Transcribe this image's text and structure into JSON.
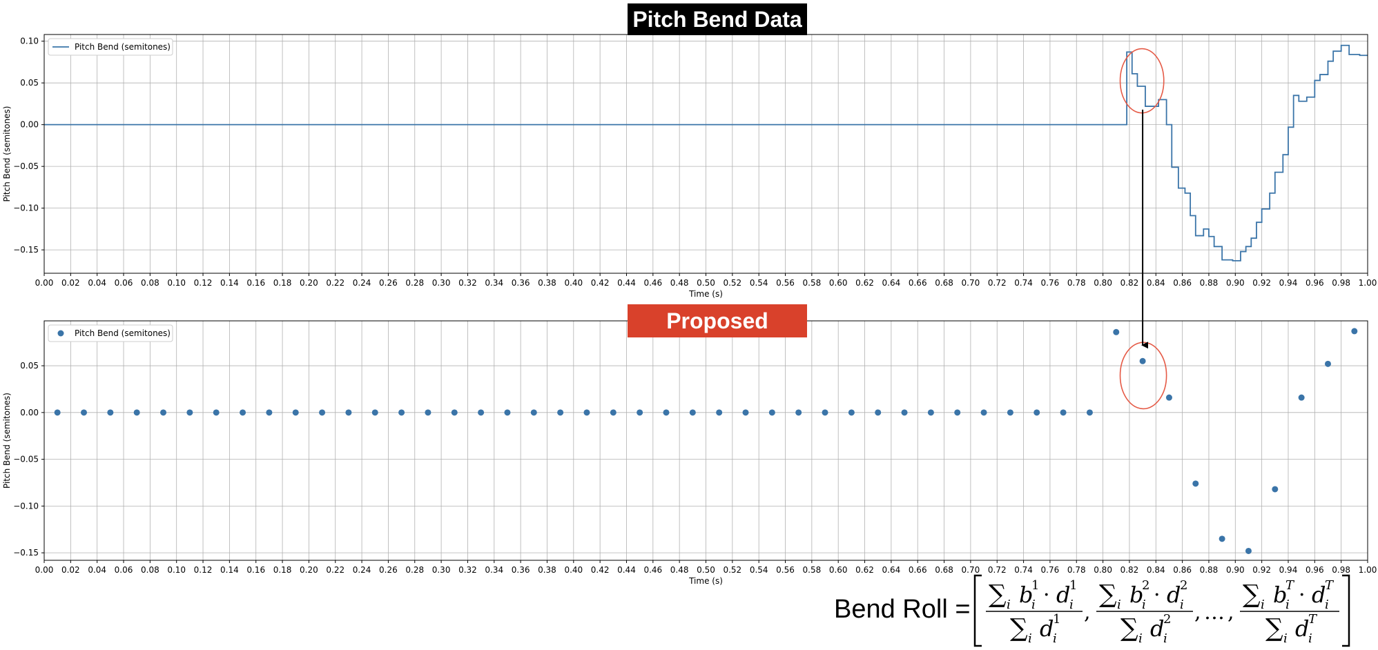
{
  "titles": {
    "top": "Pitch Bend Data",
    "bottom": "Proposed"
  },
  "colors": {
    "series": "#3a74a8",
    "top_title_bg": "#000000",
    "bottom_title_bg": "#d9412b",
    "annotation": "#e55a46"
  },
  "formula": {
    "lhs": "Bend Roll =",
    "ellipsis": "…",
    "sum": "∑",
    "index": "i",
    "b": "b",
    "d": "d",
    "dot": "·",
    "sup1": "1",
    "sup2": "2",
    "supT": "T",
    "comma": ","
  },
  "chart_data": [
    {
      "type": "line",
      "step": true,
      "title": "Pitch Bend Data",
      "xlabel": "Time (s)",
      "ylabel": "Pitch Bend (semitones)",
      "xlim": [
        0,
        1.0
      ],
      "ylim": [
        -0.178,
        0.108
      ],
      "grid": true,
      "legend_position": "top-left",
      "x_ticks": [
        "0.00",
        "0.02",
        "0.04",
        "0.06",
        "0.08",
        "0.10",
        "0.12",
        "0.14",
        "0.16",
        "0.18",
        "0.20",
        "0.22",
        "0.24",
        "0.26",
        "0.28",
        "0.30",
        "0.32",
        "0.34",
        "0.36",
        "0.38",
        "0.40",
        "0.42",
        "0.44",
        "0.46",
        "0.48",
        "0.50",
        "0.52",
        "0.54",
        "0.56",
        "0.58",
        "0.60",
        "0.62",
        "0.64",
        "0.66",
        "0.68",
        "0.70",
        "0.72",
        "0.74",
        "0.76",
        "0.78",
        "0.80",
        "0.82",
        "0.84",
        "0.86",
        "0.88",
        "0.90",
        "0.92",
        "0.94",
        "0.96",
        "0.98",
        "1.00"
      ],
      "y_ticks": [
        {
          "value": 0.1,
          "label": "0.10"
        },
        {
          "value": 0.05,
          "label": "0.05"
        },
        {
          "value": 0.0,
          "label": "0.00"
        },
        {
          "value": -0.05,
          "label": "−0.05"
        },
        {
          "value": -0.1,
          "label": "−0.10"
        },
        {
          "value": -0.15,
          "label": "−0.15"
        }
      ],
      "series": [
        {
          "name": "Pitch Bend (semitones)",
          "points": [
            [
              0.0,
              0.0
            ],
            [
              0.818,
              0.0
            ],
            [
              0.818,
              0.087
            ],
            [
              0.822,
              0.087
            ],
            [
              0.822,
              0.061
            ],
            [
              0.826,
              0.061
            ],
            [
              0.826,
              0.046
            ],
            [
              0.832,
              0.046
            ],
            [
              0.832,
              0.022
            ],
            [
              0.842,
              0.022
            ],
            [
              0.842,
              0.03
            ],
            [
              0.848,
              0.03
            ],
            [
              0.848,
              0.0
            ],
            [
              0.852,
              0.0
            ],
            [
              0.852,
              -0.051
            ],
            [
              0.857,
              -0.051
            ],
            [
              0.857,
              -0.076
            ],
            [
              0.862,
              -0.076
            ],
            [
              0.862,
              -0.082
            ],
            [
              0.866,
              -0.082
            ],
            [
              0.866,
              -0.109
            ],
            [
              0.87,
              -0.109
            ],
            [
              0.87,
              -0.133
            ],
            [
              0.876,
              -0.133
            ],
            [
              0.876,
              -0.125
            ],
            [
              0.88,
              -0.125
            ],
            [
              0.88,
              -0.134
            ],
            [
              0.884,
              -0.134
            ],
            [
              0.884,
              -0.146
            ],
            [
              0.89,
              -0.146
            ],
            [
              0.89,
              -0.162
            ],
            [
              0.898,
              -0.162
            ],
            [
              0.898,
              -0.163
            ],
            [
              0.904,
              -0.163
            ],
            [
              0.904,
              -0.152
            ],
            [
              0.908,
              -0.152
            ],
            [
              0.908,
              -0.146
            ],
            [
              0.912,
              -0.146
            ],
            [
              0.912,
              -0.136
            ],
            [
              0.916,
              -0.136
            ],
            [
              0.916,
              -0.117
            ],
            [
              0.92,
              -0.117
            ],
            [
              0.92,
              -0.101
            ],
            [
              0.926,
              -0.101
            ],
            [
              0.926,
              -0.082
            ],
            [
              0.93,
              -0.082
            ],
            [
              0.93,
              -0.057
            ],
            [
              0.936,
              -0.057
            ],
            [
              0.936,
              -0.036
            ],
            [
              0.94,
              -0.036
            ],
            [
              0.94,
              -0.003
            ],
            [
              0.944,
              -0.003
            ],
            [
              0.944,
              0.035
            ],
            [
              0.948,
              0.035
            ],
            [
              0.948,
              0.028
            ],
            [
              0.954,
              0.028
            ],
            [
              0.954,
              0.033
            ],
            [
              0.96,
              0.033
            ],
            [
              0.96,
              0.053
            ],
            [
              0.964,
              0.053
            ],
            [
              0.964,
              0.06
            ],
            [
              0.97,
              0.06
            ],
            [
              0.97,
              0.076
            ],
            [
              0.974,
              0.076
            ],
            [
              0.974,
              0.088
            ],
            [
              0.98,
              0.088
            ],
            [
              0.98,
              0.095
            ],
            [
              0.986,
              0.095
            ],
            [
              0.986,
              0.084
            ],
            [
              0.994,
              0.084
            ],
            [
              0.994,
              0.083
            ],
            [
              1.0,
              0.083
            ]
          ]
        }
      ],
      "annotations": [
        {
          "type": "ellipse",
          "cx": 0.8295,
          "cy": 0.0525,
          "rx": 0.0165,
          "ry": 0.0385
        }
      ]
    },
    {
      "type": "scatter",
      "title": "Proposed",
      "xlabel": "Time (s)",
      "ylabel": "Pitch Bend (semitones)",
      "xlim": [
        0,
        1.0
      ],
      "ylim": [
        -0.158,
        0.098
      ],
      "grid": true,
      "legend_position": "top-left",
      "x_ticks": [
        "0.00",
        "0.02",
        "0.04",
        "0.06",
        "0.08",
        "0.10",
        "0.12",
        "0.14",
        "0.16",
        "0.18",
        "0.20",
        "0.22",
        "0.24",
        "0.26",
        "0.28",
        "0.30",
        "0.32",
        "0.34",
        "0.36",
        "0.38",
        "0.40",
        "0.42",
        "0.44",
        "0.46",
        "0.48",
        "0.50",
        "0.52",
        "0.54",
        "0.56",
        "0.58",
        "0.60",
        "0.62",
        "0.64",
        "0.66",
        "0.68",
        "0.70",
        "0.72",
        "0.74",
        "0.76",
        "0.78",
        "0.80",
        "0.82",
        "0.84",
        "0.86",
        "0.88",
        "0.90",
        "0.92",
        "0.94",
        "0.96",
        "0.98",
        "1.00"
      ],
      "y_ticks": [
        {
          "value": 0.05,
          "label": "0.05"
        },
        {
          "value": 0.0,
          "label": "0.00"
        },
        {
          "value": -0.05,
          "label": "−0.05"
        },
        {
          "value": -0.1,
          "label": "−0.10"
        },
        {
          "value": -0.15,
          "label": "−0.15"
        }
      ],
      "series": [
        {
          "name": "Pitch Bend (semitones)",
          "points": [
            [
              0.01,
              0.0
            ],
            [
              0.03,
              0.0
            ],
            [
              0.05,
              0.0
            ],
            [
              0.07,
              0.0
            ],
            [
              0.09,
              0.0
            ],
            [
              0.11,
              0.0
            ],
            [
              0.13,
              0.0
            ],
            [
              0.15,
              0.0
            ],
            [
              0.17,
              0.0
            ],
            [
              0.19,
              0.0
            ],
            [
              0.21,
              0.0
            ],
            [
              0.23,
              0.0
            ],
            [
              0.25,
              0.0
            ],
            [
              0.27,
              0.0
            ],
            [
              0.29,
              0.0
            ],
            [
              0.31,
              0.0
            ],
            [
              0.33,
              0.0
            ],
            [
              0.35,
              0.0
            ],
            [
              0.37,
              0.0
            ],
            [
              0.39,
              0.0
            ],
            [
              0.41,
              0.0
            ],
            [
              0.43,
              0.0
            ],
            [
              0.45,
              0.0
            ],
            [
              0.47,
              0.0
            ],
            [
              0.49,
              0.0
            ],
            [
              0.51,
              0.0
            ],
            [
              0.53,
              0.0
            ],
            [
              0.55,
              0.0
            ],
            [
              0.57,
              0.0
            ],
            [
              0.59,
              0.0
            ],
            [
              0.61,
              0.0
            ],
            [
              0.63,
              0.0
            ],
            [
              0.65,
              0.0
            ],
            [
              0.67,
              0.0
            ],
            [
              0.69,
              0.0
            ],
            [
              0.71,
              0.0
            ],
            [
              0.73,
              0.0
            ],
            [
              0.75,
              0.0
            ],
            [
              0.77,
              0.0
            ],
            [
              0.79,
              0.0
            ],
            [
              0.81,
              0.086
            ],
            [
              0.83,
              0.055
            ],
            [
              0.85,
              0.016
            ],
            [
              0.87,
              -0.076
            ],
            [
              0.89,
              -0.135
            ],
            [
              0.91,
              -0.148
            ],
            [
              0.93,
              -0.082
            ],
            [
              0.95,
              0.016
            ],
            [
              0.97,
              0.052
            ],
            [
              0.99,
              0.087
            ]
          ]
        }
      ],
      "annotations": [
        {
          "type": "ellipse",
          "cx": 0.8305,
          "cy": 0.0395,
          "rx": 0.0175,
          "ry": 0.0355
        }
      ]
    }
  ]
}
